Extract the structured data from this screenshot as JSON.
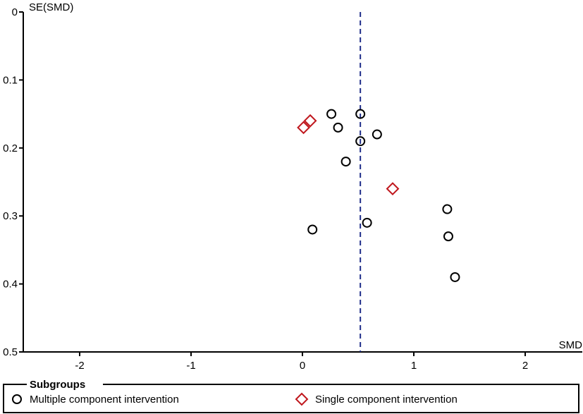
{
  "chart_data": {
    "type": "scatter",
    "subtype": "funnel-plot",
    "xlabel": "SMD",
    "ylabel": "SE(SMD)",
    "xlim": [
      -2.5,
      2.5
    ],
    "ylim": [
      0,
      0.5
    ],
    "y_reversed": true,
    "x_ticks": [
      -2,
      -1,
      0,
      1,
      2
    ],
    "x_tick_labels": [
      "-2",
      "-1",
      "0",
      "1",
      "2"
    ],
    "y_ticks": [
      0,
      0.1,
      0.2,
      0.3,
      0.4,
      0.5
    ],
    "y_tick_labels": [
      "0",
      "0.1",
      "0.2",
      "0.3",
      "0.4",
      "0.5"
    ],
    "grid": false,
    "reference_line": {
      "x": 0.52,
      "style": "dashed",
      "color": "#1f2d8a"
    },
    "legend": {
      "title": "Subgroups",
      "placement": "bottom",
      "entries": [
        {
          "label": "Multiple component intervention",
          "marker": "circle",
          "color": "#000000"
        },
        {
          "label": "Single component intervention",
          "marker": "diamond",
          "color": "#c0171d"
        }
      ]
    },
    "series": [
      {
        "name": "Multiple component intervention",
        "marker": "circle",
        "color": "#000000",
        "points": [
          {
            "x": 0.26,
            "y": 0.15
          },
          {
            "x": 0.52,
            "y": 0.15
          },
          {
            "x": 0.32,
            "y": 0.17
          },
          {
            "x": 0.67,
            "y": 0.18
          },
          {
            "x": 0.52,
            "y": 0.19
          },
          {
            "x": 0.39,
            "y": 0.22
          },
          {
            "x": 1.3,
            "y": 0.29
          },
          {
            "x": 0.58,
            "y": 0.31
          },
          {
            "x": 0.09,
            "y": 0.32
          },
          {
            "x": 1.31,
            "y": 0.33
          },
          {
            "x": 1.37,
            "y": 0.39
          }
        ]
      },
      {
        "name": "Single component intervention",
        "marker": "diamond",
        "color": "#c0171d",
        "points": [
          {
            "x": 0.07,
            "y": 0.16
          },
          {
            "x": 0.01,
            "y": 0.17
          },
          {
            "x": 0.81,
            "y": 0.26
          }
        ]
      }
    ]
  }
}
